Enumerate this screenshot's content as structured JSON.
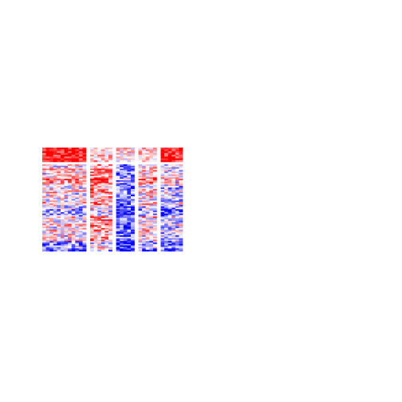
{
  "chart_data": {
    "type": "heatmap",
    "title": "",
    "xlabel": "",
    "ylabel": "",
    "legend": "none",
    "grid": false,
    "colors": {
      "low": "#0000ff",
      "mid": "#ffffff",
      "high": "#ff0000"
    },
    "value_range": [
      -1,
      1
    ],
    "row_clusters": [
      {
        "rows": 8,
        "description_level": "high"
      },
      {
        "rows": 60,
        "description_level": "mixed"
      }
    ],
    "column_groups": [
      {
        "columns": 12,
        "level_top": 0.9,
        "level_body": 0.05
      },
      {
        "columns": 6,
        "level_top": 0.25,
        "level_body": 0.35
      },
      {
        "columns": 5,
        "level_top": 0.15,
        "level_body": -0.55
      },
      {
        "columns": 5,
        "level_top": 0.2,
        "level_body": 0.1
      },
      {
        "columns": 6,
        "level_top": 0.85,
        "level_body": -0.2
      }
    ]
  }
}
